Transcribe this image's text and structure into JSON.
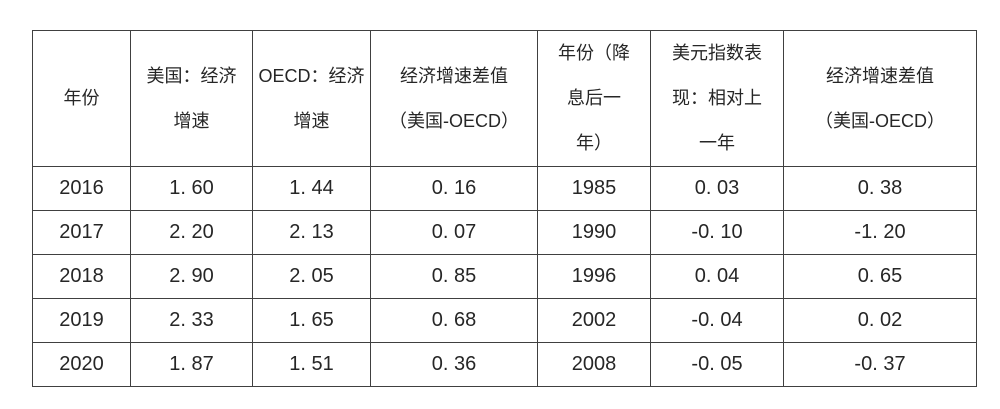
{
  "colors": {
    "background": "#ffffff",
    "border": "#404040",
    "text": "#262626"
  },
  "table": {
    "columns": [
      "年份",
      "美国：经济\n增速",
      "OECD：经济\n增速",
      "经济增速差值\n（美国-OECD）",
      "年份（降\n息后一\n年）",
      "美元指数表\n现：相对上\n一年",
      "经济增速差值\n（美国-OECD）"
    ],
    "rows": [
      [
        "2016",
        "1. 60",
        "1. 44",
        "0. 16",
        "1985",
        "0. 03",
        "0. 38"
      ],
      [
        "2017",
        "2. 20",
        "2. 13",
        "0. 07",
        "1990",
        "-0. 10",
        "-1. 20"
      ],
      [
        "2018",
        "2. 90",
        "2. 05",
        "0. 85",
        "1996",
        "0. 04",
        "0. 65"
      ],
      [
        "2019",
        "2. 33",
        "1. 65",
        "0. 68",
        "2002",
        "-0. 04",
        "0. 02"
      ],
      [
        "2020",
        "1. 87",
        "1. 51",
        "0. 36",
        "2008",
        "-0. 05",
        "-0. 37"
      ]
    ]
  },
  "chart_data": {
    "type": "table",
    "title": "",
    "columns": [
      "年份",
      "美国：经济增速",
      "OECD：经济增速",
      "经济增速差值（美国-OECD）",
      "年份（降息后一年）",
      "美元指数表现：相对上一年",
      "经济增速差值（美国-OECD）"
    ],
    "rows": [
      [
        2016,
        1.6,
        1.44,
        0.16,
        1985,
        0.03,
        0.38
      ],
      [
        2017,
        2.2,
        2.13,
        0.07,
        1990,
        -0.1,
        -1.2
      ],
      [
        2018,
        2.9,
        2.05,
        0.85,
        1996,
        0.04,
        0.65
      ],
      [
        2019,
        2.33,
        1.65,
        0.68,
        2002,
        -0.04,
        0.02
      ],
      [
        2020,
        1.87,
        1.51,
        0.36,
        2008,
        -0.05,
        -0.37
      ]
    ]
  }
}
